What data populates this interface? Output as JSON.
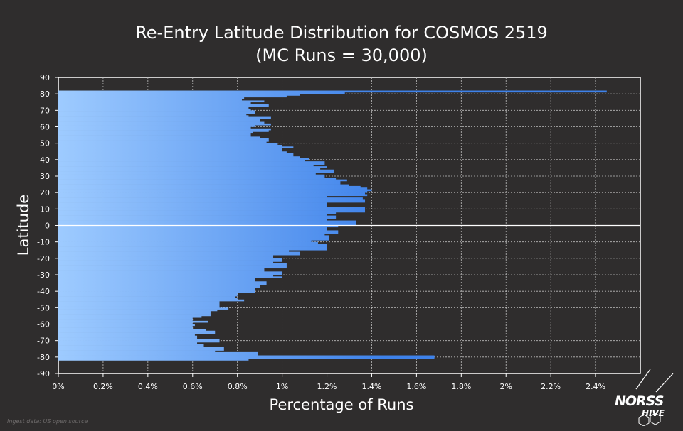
{
  "chart_data": {
    "type": "bar",
    "orientation": "horizontal",
    "title": "Re-Entry Latitude Distribution for COSMOS 2519",
    "subtitle": "(MC Runs = 30,000)",
    "xlabel": "Percentage of Runs",
    "ylabel": "Latitude",
    "xlim": [
      0,
      2.6
    ],
    "ylim": [
      -90,
      90
    ],
    "x_ticks": [
      "0%",
      "0.2%",
      "0.4%",
      "0.6%",
      "0.8%",
      "1%",
      "1.2%",
      "1.4%",
      "1.6%",
      "1.8%",
      "2%",
      "2.2%",
      "2.4%"
    ],
    "y_ticks": [
      "90",
      "80",
      "70",
      "60",
      "50",
      "40",
      "30",
      "20",
      "10",
      "0",
      "-10",
      "-20",
      "-30",
      "-40",
      "-50",
      "-60",
      "-70",
      "-80",
      "-90"
    ],
    "grid": true,
    "colors": {
      "bar_left": "#9ecbff",
      "bar_right": "#3e82ea",
      "background": "#2f2d2d",
      "grid": "#bdbdbd",
      "axis": "#ffffff"
    },
    "series": [
      {
        "name": "Percentage of Runs",
        "latitudes": [
          81.5,
          80.5,
          79.5,
          78.5,
          77.5,
          76.5,
          75.5,
          74.5,
          73.5,
          72.5,
          71.5,
          70.5,
          69.5,
          68.5,
          67.5,
          66.5,
          65.5,
          64.5,
          63.5,
          62.5,
          61.5,
          60.5,
          59.5,
          58.5,
          57.5,
          56.5,
          55.5,
          54.5,
          53.5,
          52.5,
          51.5,
          50.5,
          49.5,
          48.5,
          47.5,
          46.5,
          45.5,
          44.5,
          43.5,
          42.5,
          41.5,
          40.5,
          39.5,
          38.5,
          37.5,
          36.5,
          35.5,
          34.5,
          33.5,
          32.5,
          31.5,
          30.5,
          29.5,
          28.5,
          27.5,
          26.5,
          25.5,
          24.5,
          23.5,
          22.5,
          21.5,
          20.5,
          19.5,
          18.5,
          17.5,
          16.5,
          15.5,
          14.5,
          13.5,
          12.5,
          11.5,
          10.5,
          9.5,
          8.5,
          7.5,
          6.5,
          5.5,
          4.5,
          3.5,
          2.5,
          1.5,
          0.5,
          -0.5,
          -1.5,
          -2.5,
          -3.5,
          -4.5,
          -5.5,
          -6.5,
          -7.5,
          -8.5,
          -9.5,
          -10.5,
          -11.5,
          -12.5,
          -13.5,
          -14.5,
          -15.5,
          -16.5,
          -17.5,
          -18.5,
          -19.5,
          -20.5,
          -21.5,
          -22.5,
          -23.5,
          -24.5,
          -25.5,
          -26.5,
          -27.5,
          -28.5,
          -29.5,
          -30.5,
          -31.5,
          -32.5,
          -33.5,
          -34.5,
          -35.5,
          -36.5,
          -37.5,
          -38.5,
          -39.5,
          -40.5,
          -41.5,
          -42.5,
          -43.5,
          -44.5,
          -45.5,
          -46.5,
          -47.5,
          -48.5,
          -49.5,
          -50.5,
          -51.5,
          -52.5,
          -53.5,
          -54.5,
          -55.5,
          -56.5,
          -57.5,
          -58.5,
          -59.5,
          -60.5,
          -61.5,
          -62.5,
          -63.5,
          -64.5,
          -65.5,
          -66.5,
          -67.5,
          -68.5,
          -69.5,
          -70.5,
          -71.5,
          -72.5,
          -73.5,
          -74.5,
          -75.5,
          -76.5,
          -77.5,
          -78.5,
          -79.5,
          -80.5,
          -81.5
        ],
        "values": [
          2.45,
          1.28,
          1.08,
          1.02,
          0.83,
          0.82,
          0.92,
          0.86,
          0.94,
          0.94,
          0.85,
          0.86,
          0.88,
          0.88,
          0.84,
          0.85,
          0.95,
          0.9,
          0.9,
          0.92,
          0.95,
          0.88,
          0.86,
          0.95,
          0.94,
          0.87,
          0.86,
          0.86,
          0.9,
          0.94,
          0.94,
          0.93,
          0.98,
          1.0,
          1.05,
          1.0,
          1.0,
          1.02,
          1.05,
          1.05,
          1.08,
          1.12,
          1.1,
          1.19,
          1.19,
          1.14,
          1.2,
          1.17,
          1.23,
          1.23,
          1.15,
          1.19,
          1.19,
          1.24,
          1.29,
          1.26,
          1.26,
          1.3,
          1.35,
          1.38,
          1.4,
          1.38,
          1.37,
          1.38,
          1.2,
          1.36,
          1.37,
          1.37,
          1.2,
          1.2,
          1.2,
          1.37,
          1.37,
          1.37,
          1.24,
          1.2,
          1.24,
          1.24,
          1.2,
          1.33,
          1.33,
          1.33,
          1.25,
          1.2,
          1.2,
          1.25,
          1.25,
          1.19,
          1.21,
          1.21,
          1.21,
          1.13,
          1.16,
          1.2,
          1.2,
          1.2,
          1.2,
          1.03,
          1.08,
          1.08,
          0.96,
          0.96,
          1.0,
          1.0,
          0.96,
          1.02,
          1.02,
          1.02,
          0.92,
          0.92,
          1.0,
          1.0,
          0.96,
          1.0,
          0.88,
          0.88,
          0.93,
          0.93,
          0.9,
          0.9,
          0.88,
          0.88,
          0.88,
          0.8,
          0.8,
          0.79,
          0.8,
          0.83,
          0.72,
          0.72,
          0.72,
          0.72,
          0.76,
          0.71,
          0.68,
          0.68,
          0.68,
          0.64,
          0.6,
          0.6,
          0.67,
          0.6,
          0.61,
          0.6,
          0.6,
          0.66,
          0.7,
          0.7,
          0.61,
          0.62,
          0.62,
          0.72,
          0.72,
          0.62,
          0.65,
          0.65,
          0.74,
          0.74,
          0.7,
          0.89,
          0.89,
          1.68,
          1.68,
          0.85
        ]
      }
    ]
  },
  "branding": {
    "logo_text_top": "NORSS",
    "logo_text_bottom": "HIVE"
  },
  "footer": {
    "note": "Ingest data: US open source"
  }
}
